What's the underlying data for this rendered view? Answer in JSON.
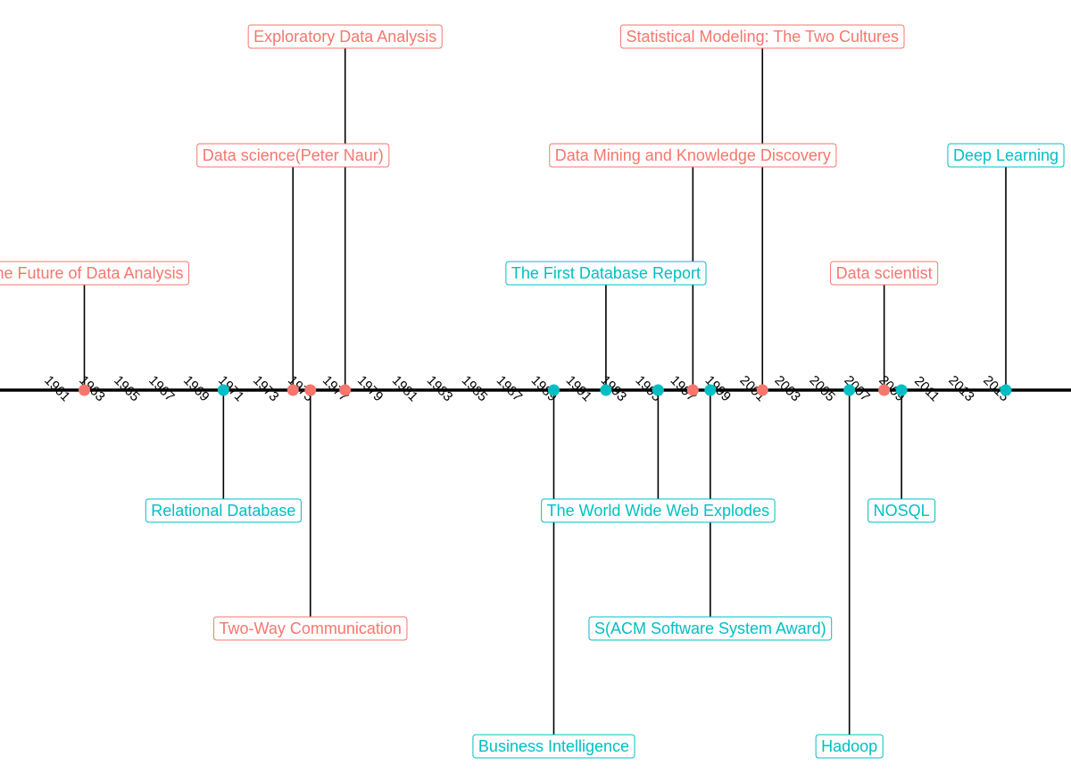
{
  "chart_data": {
    "type": "timeline",
    "x_range": [
      1960,
      2016
    ],
    "tick_labels": [
      "1961",
      "1963",
      "1965",
      "1967",
      "1969",
      "1971",
      "1973",
      "1975",
      "1977",
      "1979",
      "1981",
      "1983",
      "1985",
      "1987",
      "1989",
      "1991",
      "1993",
      "1995",
      "1997",
      "1999",
      "2001",
      "2003",
      "2005",
      "2007",
      "2009",
      "2011",
      "2013",
      "2015"
    ],
    "colors": {
      "red": "#F8766D",
      "teal": "#00BFC4",
      "axis": "#000000"
    },
    "events": [
      {
        "year": 1962,
        "label": "The Future of Data Analysis",
        "color": "red",
        "level": 1
      },
      {
        "year": 1970,
        "label": "Relational Database",
        "color": "teal",
        "level": -1
      },
      {
        "year": 1974,
        "label": "Data science(Peter Naur)",
        "color": "red",
        "level": 2
      },
      {
        "year": 1975,
        "label": "Two-Way Communication",
        "color": "red",
        "level": -2
      },
      {
        "year": 1977,
        "label": "Exploratory Data Analysis",
        "color": "red",
        "level": 3
      },
      {
        "year": 1989,
        "label": "Business Intelligence",
        "color": "teal",
        "level": -3
      },
      {
        "year": 1992,
        "label": "The First Database Report",
        "color": "teal",
        "level": 1
      },
      {
        "year": 1995,
        "label": "The World Wide Web Explodes",
        "color": "teal",
        "level": -1
      },
      {
        "year": 1997,
        "label": "Data Mining and Knowledge Discovery",
        "color": "red",
        "level": 2
      },
      {
        "year": 1998,
        "label": "S(ACM Software System Award)",
        "color": "teal",
        "level": -2
      },
      {
        "year": 2001,
        "label": "Statistical Modeling: The Two Cultures",
        "color": "red",
        "level": 3
      },
      {
        "year": 2006,
        "label": "Hadoop",
        "color": "teal",
        "level": -3
      },
      {
        "year": 2008,
        "label": "Data scientist",
        "color": "red",
        "level": 1
      },
      {
        "year": 2009,
        "label": "NOSQL",
        "color": "teal",
        "level": -1
      },
      {
        "year": 2015,
        "label": "Deep Learning",
        "color": "teal",
        "level": 2
      }
    ]
  }
}
